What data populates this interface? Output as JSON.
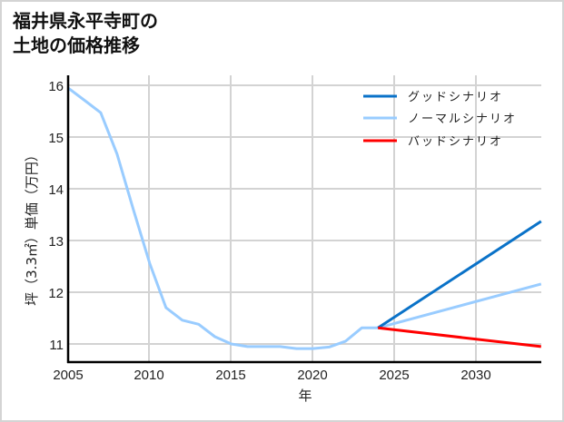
{
  "title": {
    "line1": "福井県永平寺町の",
    "line2": "土地の価格推移"
  },
  "chart_data": {
    "type": "line",
    "title": "福井県永平寺町の土地の価格推移",
    "xlabel": "年",
    "ylabel": "坪（3.3㎡）単価（万円）",
    "xlim": [
      2005,
      2034
    ],
    "ylim": [
      10.64,
      16.19
    ],
    "x_ticks": [
      2005,
      2010,
      2015,
      2020,
      2025,
      2030
    ],
    "y_ticks": [
      11,
      12,
      13,
      14,
      15,
      16
    ],
    "grid": true,
    "legend_position": "upper right",
    "series": [
      {
        "name": "グッドシナリオ",
        "color": "#0a72c8",
        "x": [
          2024,
          2034
        ],
        "values": [
          11.31,
          13.37
        ]
      },
      {
        "name": "ノーマルシナリオ",
        "color": "#99ccff",
        "x": [
          2005,
          2006,
          2007,
          2008,
          2009,
          2010,
          2011,
          2012,
          2013,
          2014,
          2015,
          2016,
          2017,
          2018,
          2019,
          2020,
          2021,
          2022,
          2023,
          2024,
          2034
        ],
        "values": [
          15.95,
          15.71,
          15.47,
          14.67,
          13.6,
          12.56,
          11.7,
          11.46,
          11.38,
          11.14,
          11.0,
          10.95,
          10.95,
          10.95,
          10.91,
          10.91,
          10.94,
          11.05,
          11.31,
          11.31,
          12.16
        ]
      },
      {
        "name": "バッドシナリオ",
        "color": "#ff0000",
        "x": [
          2024,
          2034
        ],
        "values": [
          11.31,
          10.95
        ]
      }
    ]
  },
  "axes": {
    "x_tick_labels": [
      "2005",
      "2010",
      "2015",
      "2020",
      "2025",
      "2030"
    ],
    "y_tick_labels": [
      "16",
      "15",
      "14",
      "13",
      "12",
      "11"
    ],
    "xlabel": "年",
    "ylabel": "坪（3.3㎡）単価（万円）"
  },
  "legend": {
    "items": [
      {
        "label": "グッドシナリオ",
        "color": "#0a72c8"
      },
      {
        "label": "ノーマルシナリオ",
        "color": "#99ccff"
      },
      {
        "label": "バッドシナリオ",
        "color": "#ff0000"
      }
    ]
  }
}
